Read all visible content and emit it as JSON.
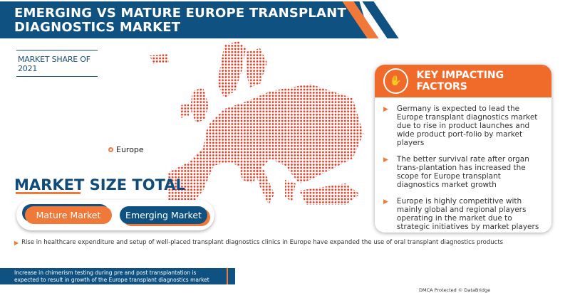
{
  "header": {
    "title_line1": "EMERGING VS MATURE EUROPE TRANSPLANT",
    "title_line2": "DIAGNOSTICS MARKET"
  },
  "market_share": {
    "label": "MARKET SHARE OF 2021"
  },
  "map": {
    "region_label": "Europe",
    "dot_color": "#e8381e"
  },
  "market_size": {
    "title": "MARKET SIZE TOTAL",
    "mature_label": "Mature Market",
    "emerging_label": "Emerging Market"
  },
  "note": "Rise in healthcare expenditure and setup of well-placed transplant diagnostics clinics in Europe have expanded the use of oral transplant diagnostics products",
  "footer": {
    "text": "Increase in chimerism testing during pre and post transplantation is expected to result in growth of the Europe transplant diagnostics market growth",
    "dmca": "DMCA Protected © DataBridge"
  },
  "key_factors": {
    "title": "KEY IMPACTING FACTORS",
    "items": [
      "Germany is expected to lead the Europe transplant diagnostics market due to rise in product launches and wide product port-folio by market players",
      "The better survival rate after organ trans-plantation has increased the scope for Europe transplant diagnostics market growth",
      "Europe is highly competitive with mainly global and regional players operating in the market due to strategic initiatives by market players"
    ]
  },
  "colors": {
    "brand_blue": "#0f5282",
    "brand_orange": "#f0793a"
  }
}
